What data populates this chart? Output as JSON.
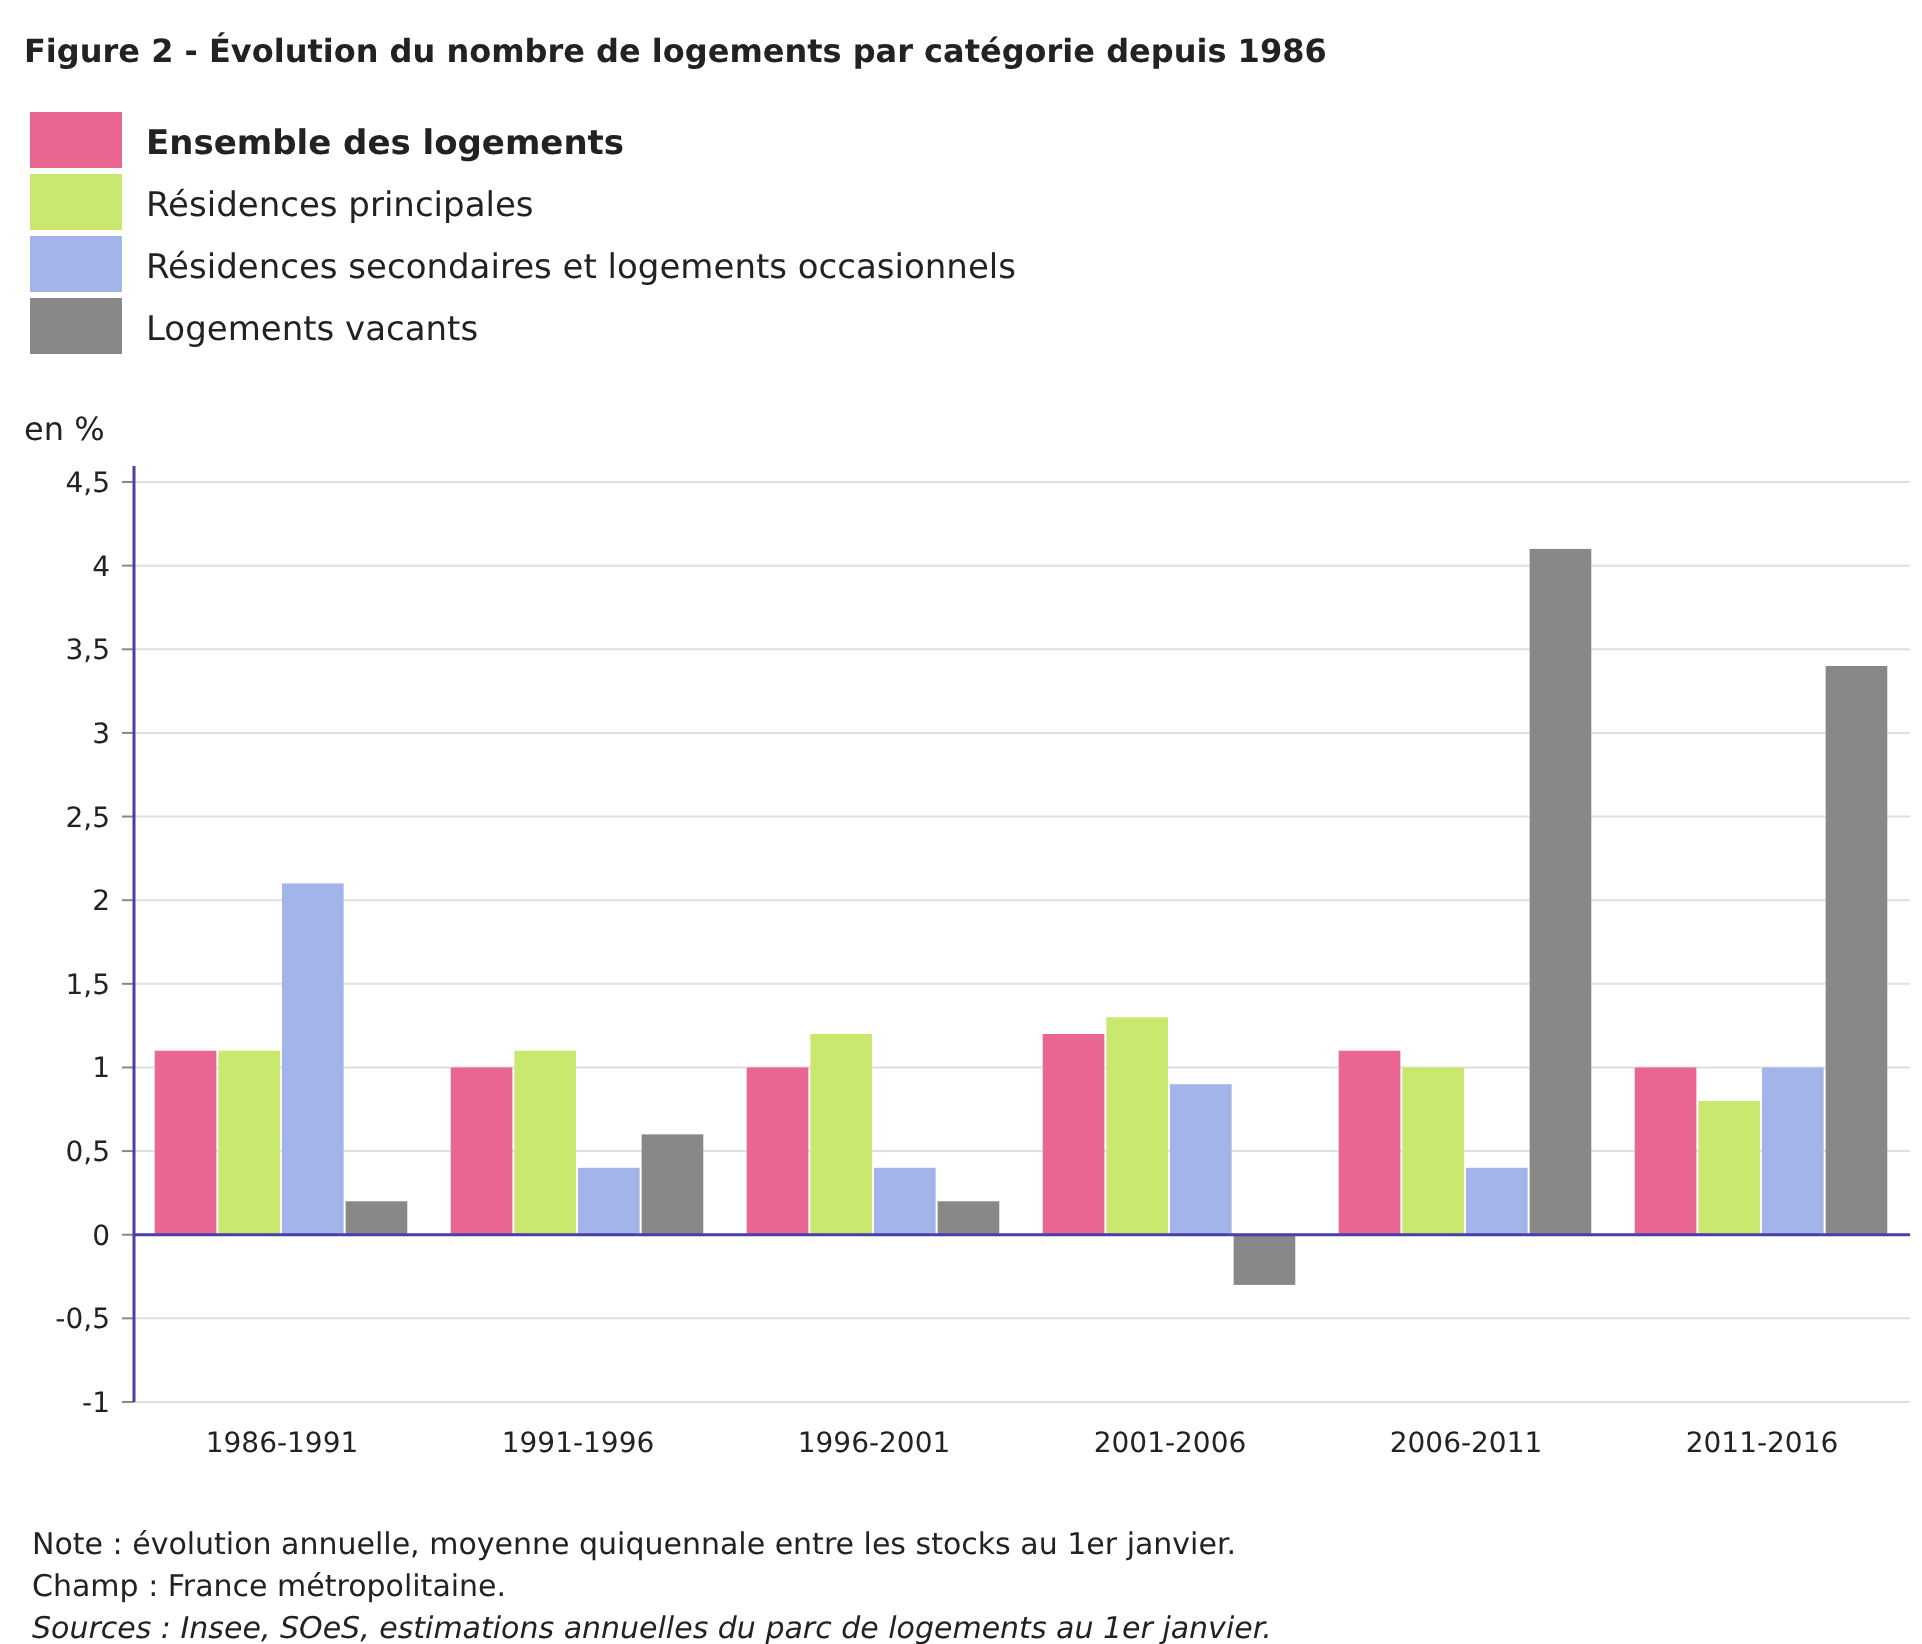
{
  "chart_data": {
    "type": "bar",
    "title": "Figure 2 - Évolution du nombre de logements par catégorie depuis 1986",
    "ylabel": "en %",
    "categories": [
      "1986-1991",
      "1991-1996",
      "1996-2001",
      "2001-2006",
      "2006-2011",
      "2011-2016"
    ],
    "series": [
      {
        "name": "Ensemble des logements",
        "color": "#e8668f",
        "values": [
          1.1,
          1.0,
          1.0,
          1.2,
          1.1,
          1.0
        ]
      },
      {
        "name": "Résidences principales",
        "color": "#c8e86e",
        "values": [
          1.1,
          1.1,
          1.2,
          1.3,
          1.0,
          0.8
        ]
      },
      {
        "name": "Résidences secondaires et logements occasionnels",
        "color": "#a3b5e8",
        "values": [
          2.1,
          0.4,
          0.4,
          0.9,
          0.4,
          1.0
        ]
      },
      {
        "name": "Logements vacants",
        "color": "#888888",
        "values": [
          0.2,
          0.6,
          0.2,
          -0.3,
          4.1,
          3.4
        ]
      }
    ],
    "ylim": [
      -1,
      4.5
    ],
    "yticks": [
      {
        "value": -1,
        "label": "-1"
      },
      {
        "value": -0.5,
        "label": "-0,5"
      },
      {
        "value": 0,
        "label": "0"
      },
      {
        "value": 0.5,
        "label": "0,5"
      },
      {
        "value": 1,
        "label": "1"
      },
      {
        "value": 1.5,
        "label": "1,5"
      },
      {
        "value": 2,
        "label": "2"
      },
      {
        "value": 2.5,
        "label": "2,5"
      },
      {
        "value": 3,
        "label": "3"
      },
      {
        "value": 3.5,
        "label": "3,5"
      },
      {
        "value": 4,
        "label": "4"
      },
      {
        "value": 4.5,
        "label": "4,5"
      }
    ],
    "grid": "y",
    "legend": "top",
    "ref_lines": [
      {
        "axis": "y",
        "value": 0,
        "color": "#4a3fa8"
      }
    ],
    "annotations": [
      "Note : évolution annuelle, moyenne quiquennale entre les stocks au 1er janvier.",
      "Champ : France métropolitaine.",
      "Sources : Insee, SOeS, estimations annuelles du parc de logements au 1er janvier."
    ]
  }
}
